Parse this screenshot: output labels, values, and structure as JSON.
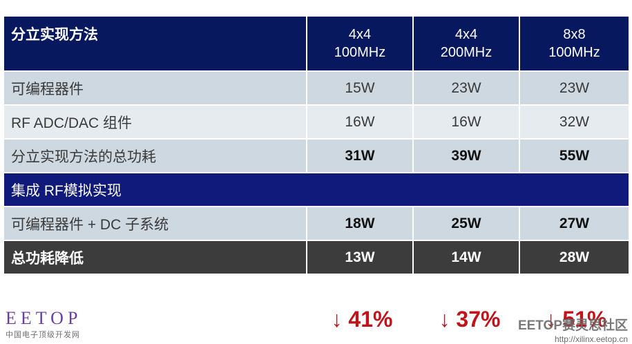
{
  "header": {
    "label": "分立实现方法",
    "cols": [
      {
        "line1": "4x4",
        "line2": "100MHz"
      },
      {
        "line1": "4x4",
        "line2": "200MHz"
      },
      {
        "line1": "8x8",
        "line2": "100MHz"
      }
    ]
  },
  "rows": [
    {
      "label": "可编程器件",
      "values": [
        "15W",
        "23W",
        "23W"
      ]
    },
    {
      "label": "RF ADC/DAC 组件",
      "values": [
        "16W",
        "16W",
        "32W"
      ]
    },
    {
      "label": "分立实现方法的总功耗",
      "values": [
        "31W",
        "39W",
        "55W"
      ]
    }
  ],
  "section": {
    "label": "集成 RF模拟实现"
  },
  "integrated": {
    "label": "可编程器件 + DC 子系统",
    "values": [
      "18W",
      "25W",
      "27W"
    ]
  },
  "reduction": {
    "label": "总功耗降低",
    "values": [
      "13W",
      "14W",
      "28W"
    ]
  },
  "percentages": [
    "↓ 41%",
    "↓ 37%",
    "↓ 51%"
  ],
  "watermark_left": {
    "brand": "EETOP",
    "sub": "中国电子顶级开发网"
  },
  "watermark_right": {
    "main": "EETOP赛灵思社区",
    "url": "http://xilinx.eetop.cn"
  },
  "colors": {
    "header_bg": "#07185f",
    "section_bg": "#0f1a7a",
    "row_light": "#cdd8e1",
    "row_lighter": "#e6ebf0",
    "reduction_bg": "#3c3c3c",
    "percent_red": "#c0141a"
  }
}
